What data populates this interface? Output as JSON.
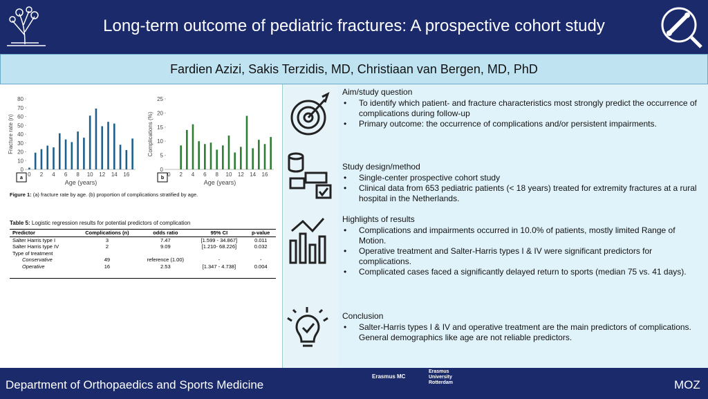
{
  "header": {
    "title": "Long-term outcome of pediatric fractures: A prospective cohort study",
    "authors": "Fardien Azizi, Sakis Terzidis, MD, Christiaan van Bergen, MD, PhD"
  },
  "chart_data": [
    {
      "type": "bar",
      "panel": "a",
      "ylabel": "Fracture rate (n)",
      "xlabel": "Age (years)",
      "color": "#1f5f8b",
      "categories": [
        "0",
        null,
        "2",
        null,
        "4",
        null,
        "6",
        null,
        "8",
        null,
        "10",
        null,
        "12",
        null,
        "14",
        null,
        "16",
        null
      ],
      "values": [
        2,
        19,
        23,
        27,
        25,
        41,
        34,
        31,
        43,
        36,
        61,
        69,
        49,
        54,
        52,
        28,
        22,
        35
      ],
      "ylim": [
        0,
        80
      ],
      "yticks": [
        0,
        10,
        20,
        30,
        40,
        50,
        60,
        70,
        80
      ]
    },
    {
      "type": "bar",
      "panel": "b",
      "ylabel": "Complications (%)",
      "xlabel": "Age (years)",
      "color": "#2e7d32",
      "categories": [
        "0",
        null,
        "2",
        null,
        "4",
        null,
        "6",
        null,
        "8",
        null,
        "10",
        null,
        "12",
        null,
        "14",
        null,
        "16",
        null
      ],
      "values": [
        0,
        0,
        8.5,
        14,
        16,
        10,
        9,
        9.5,
        7,
        8.5,
        12,
        6,
        8,
        19,
        7.5,
        10.5,
        9,
        11.5
      ],
      "ylim": [
        0,
        25
      ],
      "yticks": [
        0,
        5,
        10,
        15,
        20,
        25
      ]
    }
  ],
  "figure": {
    "label": "Figure 1:",
    "caption": "(a) fracture rate by age. (b) proportion of complications stratified by age."
  },
  "table": {
    "label": "Table 5:",
    "caption": "Logistic regression results for potential predictors of complication",
    "columns": [
      "Predictor",
      "Complications (n)",
      "odds ratio",
      "95% CI",
      "p-value"
    ],
    "rows": [
      {
        "cells": [
          "Salter Harris type I",
          "3",
          "7.47",
          "[1.599 - 34.867]",
          "0.011"
        ]
      },
      {
        "cells": [
          "Salter Harris type IV",
          "2",
          "9.09",
          "[1.210- 68.226]",
          "0.032"
        ]
      },
      {
        "cells": [
          "Type of treatment"
        ]
      },
      {
        "cells": [
          "Conservative",
          "49",
          "reference (1.00)",
          "-",
          "-"
        ],
        "sub": true
      },
      {
        "cells": [
          "Operative",
          "16",
          "2.53",
          "[1.347 - 4.738]",
          "0.004"
        ],
        "sub": true
      }
    ]
  },
  "sections": [
    {
      "heading": "Aim/study question",
      "bullets": [
        "To identify which patient- and fracture characteristics most strongly predict the occurrence of complications during follow-up",
        "Primary outcome: the occurrence of complications and/or persistent impairments."
      ]
    },
    {
      "heading": "Study design/method",
      "bullets": [
        "Single-center prospective cohort study",
        "Clinical data from 653 pediatric patients (< 18 years) treated for extremity fractures at a rural hospital in the Netherlands."
      ]
    },
    {
      "heading": "Highlights of results",
      "bullets": [
        "Complications and impairments occurred in 10.0% of patients, mostly limited Range of Motion.",
        "Operative treatment and Salter-Harris types I & IV were significant predictors for complications.",
        "Complicated cases faced a significantly delayed return to sports (median 75 vs. 41 days)."
      ]
    },
    {
      "heading": "Conclusion",
      "bullets": [
        "Salter-Harris types I & IV and operative treatment are the main predictors of complications. General demographics like age are not reliable predictors."
      ]
    }
  ],
  "footer": {
    "department": "Department of Orthopaedics and Sports Medicine",
    "logo1": "Erasmus MC",
    "logo2": "Erasmus University Rotterdam",
    "right": "MOZ"
  }
}
